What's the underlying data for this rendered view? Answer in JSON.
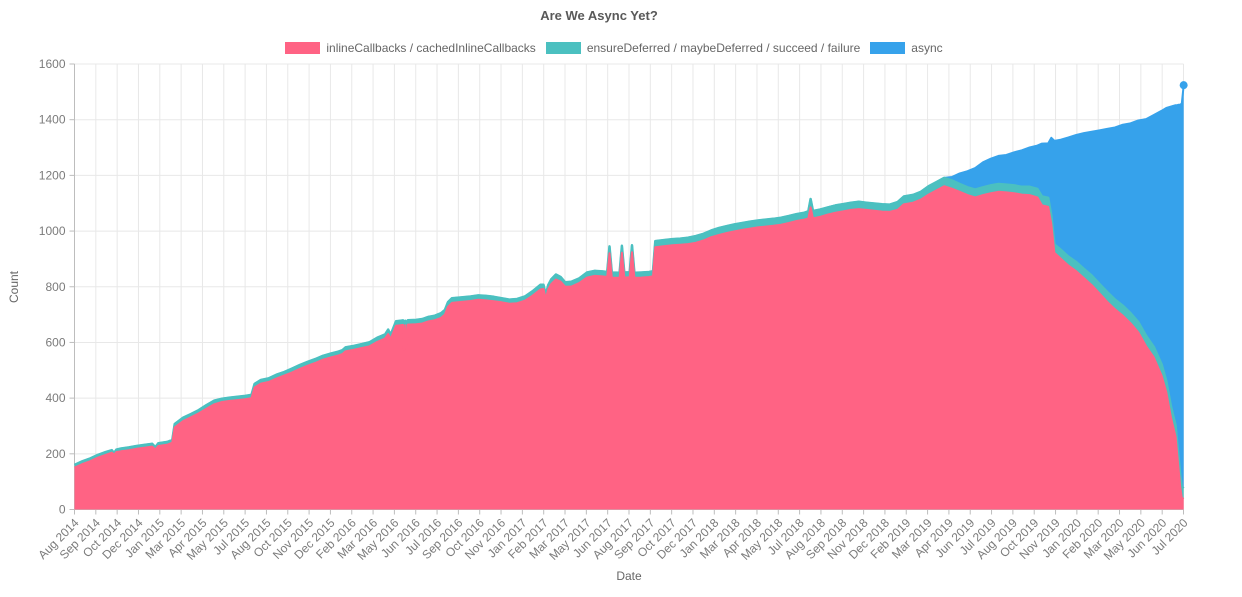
{
  "chart_data": {
    "type": "area",
    "stacked": true,
    "title": "Are We Async Yet?",
    "xlabel": "Date",
    "ylabel": "Count",
    "ylim": [
      0,
      1600
    ],
    "yticks": [
      0,
      200,
      400,
      600,
      800,
      1000,
      1200,
      1400,
      1600
    ],
    "grid": true,
    "legend_position": "top",
    "xtick_labels": [
      "Aug 2014",
      "Sep 2014",
      "Oct 2014",
      "Dec 2014",
      "Jan 2015",
      "Mar 2015",
      "Apr 2015",
      "May 2015",
      "Jul 2015",
      "Aug 2015",
      "Oct 2015",
      "Nov 2015",
      "Dec 2015",
      "Feb 2016",
      "Mar 2016",
      "May 2016",
      "Jun 2016",
      "Jul 2016",
      "Sep 2016",
      "Oct 2016",
      "Nov 2016",
      "Jan 2017",
      "Feb 2017",
      "Mar 2017",
      "May 2017",
      "Jun 2017",
      "Aug 2017",
      "Sep 2017",
      "Oct 2017",
      "Dec 2017",
      "Jan 2018",
      "Mar 2018",
      "Apr 2018",
      "May 2018",
      "Jul 2018",
      "Aug 2018",
      "Sep 2018",
      "Nov 2018",
      "Dec 2018",
      "Feb 2019",
      "Mar 2019",
      "Apr 2019",
      "Jun 2019",
      "Jul 2019",
      "Aug 2019",
      "Oct 2019",
      "Nov 2019",
      "Jan 2020",
      "Feb 2020",
      "Mar 2020",
      "May 2020",
      "Jun 2020",
      "Jul 2020"
    ],
    "series": [
      {
        "name": "inlineCallbacks / cachedInlineCallbacks",
        "color": "#ff6384"
      },
      {
        "name": "ensureDeferred / maybeDeferred / succeed / failure",
        "color": "#4bc0c0"
      },
      {
        "name": "async",
        "color": "#36a2eb"
      }
    ],
    "x_key": "months_since_aug_2014",
    "samples_format": [
      "months_since_aug_2014",
      "inlineCallbacks",
      "ensureDeferred_band",
      "async_band"
    ],
    "samples": [
      [
        0.0,
        150,
        10,
        0
      ],
      [
        0.5,
        163,
        10,
        0
      ],
      [
        1.0,
        173,
        10,
        0
      ],
      [
        1.5,
        186,
        10,
        0
      ],
      [
        2.0,
        196,
        10,
        0
      ],
      [
        2.4,
        204,
        9,
        0
      ],
      [
        2.55,
        197,
        6,
        0
      ],
      [
        2.7,
        206,
        9,
        0
      ],
      [
        3.0,
        209,
        10,
        0
      ],
      [
        3.5,
        213,
        10,
        0
      ],
      [
        4.0,
        218,
        10,
        0
      ],
      [
        4.5,
        222,
        10,
        0
      ],
      [
        5.0,
        226,
        10,
        0
      ],
      [
        5.2,
        216,
        8,
        0
      ],
      [
        5.4,
        228,
        10,
        0
      ],
      [
        6.0,
        233,
        10,
        0
      ],
      [
        6.3,
        240,
        10,
        0
      ],
      [
        6.45,
        295,
        12,
        0
      ],
      [
        7.0,
        318,
        12,
        0
      ],
      [
        7.5,
        331,
        12,
        0
      ],
      [
        8.0,
        345,
        12,
        0
      ],
      [
        8.5,
        362,
        13,
        0
      ],
      [
        9.0,
        378,
        13,
        0
      ],
      [
        9.5,
        386,
        12,
        0
      ],
      [
        10.0,
        390,
        12,
        0
      ],
      [
        10.5,
        393,
        12,
        0
      ],
      [
        11.0,
        396,
        12,
        0
      ],
      [
        11.4,
        400,
        12,
        0
      ],
      [
        11.6,
        438,
        13,
        0
      ],
      [
        12.0,
        452,
        13,
        0
      ],
      [
        12.5,
        458,
        13,
        0
      ],
      [
        13.0,
        470,
        14,
        0
      ],
      [
        13.5,
        481,
        13,
        0
      ],
      [
        14.0,
        492,
        14,
        0
      ],
      [
        14.5,
        505,
        14,
        0
      ],
      [
        15.0,
        516,
        14,
        0
      ],
      [
        15.5,
        526,
        14,
        0
      ],
      [
        16.0,
        538,
        14,
        0
      ],
      [
        16.5,
        546,
        14,
        0
      ],
      [
        17.0,
        553,
        14,
        0
      ],
      [
        17.25,
        558,
        14,
        0
      ],
      [
        17.45,
        568,
        14,
        0
      ],
      [
        18.0,
        574,
        14,
        0
      ],
      [
        18.5,
        580,
        14,
        0
      ],
      [
        19.0,
        586,
        15,
        0
      ],
      [
        19.5,
        602,
        15,
        0
      ],
      [
        20.0,
        614,
        15,
        0
      ],
      [
        20.2,
        630,
        16,
        0
      ],
      [
        20.35,
        612,
        15,
        0
      ],
      [
        20.5,
        632,
        16,
        0
      ],
      [
        20.7,
        660,
        16,
        0
      ],
      [
        21.0,
        662,
        16,
        0
      ],
      [
        21.15,
        663,
        16,
        0
      ],
      [
        21.22,
        574,
        16,
        0
      ],
      [
        21.3,
        662,
        16,
        0
      ],
      [
        21.38,
        576,
        16,
        0
      ],
      [
        21.46,
        664,
        16,
        0
      ],
      [
        22.0,
        665,
        16,
        0
      ],
      [
        22.4,
        668,
        16,
        0
      ],
      [
        22.8,
        676,
        16,
        0
      ],
      [
        23.2,
        680,
        16,
        0
      ],
      [
        23.6,
        688,
        17,
        0
      ],
      [
        23.85,
        700,
        17,
        0
      ],
      [
        24.05,
        728,
        17,
        0
      ],
      [
        24.3,
        742,
        17,
        0
      ],
      [
        25.0,
        746,
        16,
        0
      ],
      [
        25.5,
        749,
        16,
        0
      ],
      [
        26.0,
        753,
        16,
        0
      ],
      [
        26.5,
        751,
        16,
        0
      ],
      [
        27.0,
        748,
        16,
        0
      ],
      [
        27.5,
        744,
        15,
        0
      ],
      [
        28.0,
        739,
        15,
        0
      ],
      [
        28.5,
        741,
        15,
        0
      ],
      [
        29.0,
        750,
        15,
        0
      ],
      [
        29.5,
        768,
        16,
        0
      ],
      [
        30.0,
        790,
        17,
        0
      ],
      [
        30.2,
        792,
        15,
        0
      ],
      [
        30.35,
        756,
        14,
        0
      ],
      [
        30.5,
        790,
        16,
        0
      ],
      [
        30.7,
        810,
        17,
        0
      ],
      [
        31.0,
        826,
        18,
        0
      ],
      [
        31.3,
        818,
        17,
        0
      ],
      [
        31.6,
        800,
        16,
        0
      ],
      [
        32.0,
        801,
        17,
        0
      ],
      [
        32.5,
        813,
        17,
        0
      ],
      [
        33.0,
        833,
        18,
        0
      ],
      [
        33.5,
        839,
        18,
        0
      ],
      [
        34.0,
        837,
        18,
        0
      ],
      [
        34.3,
        835,
        18,
        0
      ],
      [
        34.45,
        920,
        25,
        0
      ],
      [
        34.6,
        833,
        18,
        0
      ],
      [
        35.1,
        832,
        18,
        0
      ],
      [
        35.25,
        922,
        25,
        0
      ],
      [
        35.4,
        833,
        18,
        0
      ],
      [
        35.75,
        834,
        18,
        0
      ],
      [
        35.9,
        924,
        25,
        0
      ],
      [
        36.05,
        832,
        18,
        0
      ],
      [
        36.5,
        833,
        18,
        0
      ],
      [
        37.0,
        835,
        18,
        0
      ],
      [
        37.25,
        838,
        18,
        0
      ],
      [
        37.4,
        942,
        22,
        0
      ],
      [
        38.0,
        946,
        22,
        0
      ],
      [
        38.5,
        949,
        22,
        0
      ],
      [
        39.0,
        951,
        22,
        0
      ],
      [
        39.5,
        953,
        23,
        0
      ],
      [
        40.0,
        958,
        24,
        0
      ],
      [
        40.5,
        966,
        24,
        0
      ],
      [
        41.0,
        978,
        24,
        0
      ],
      [
        41.5,
        986,
        25,
        0
      ],
      [
        42.0,
        993,
        25,
        0
      ],
      [
        42.5,
        999,
        25,
        0
      ],
      [
        43.0,
        1004,
        25,
        0
      ],
      [
        43.5,
        1009,
        25,
        0
      ],
      [
        44.0,
        1013,
        25,
        0
      ],
      [
        44.5,
        1016,
        25,
        0
      ],
      [
        45.0,
        1019,
        25,
        0
      ],
      [
        45.5,
        1023,
        25,
        0
      ],
      [
        46.0,
        1029,
        25,
        0
      ],
      [
        46.5,
        1036,
        25,
        0
      ],
      [
        47.0,
        1041,
        25,
        0
      ],
      [
        47.25,
        1045,
        26,
        0
      ],
      [
        47.4,
        1085,
        30,
        0
      ],
      [
        47.55,
        1046,
        26,
        0
      ],
      [
        48.0,
        1051,
        26,
        0
      ],
      [
        48.5,
        1059,
        26,
        0
      ],
      [
        49.0,
        1066,
        26,
        0
      ],
      [
        49.5,
        1071,
        26,
        0
      ],
      [
        50.0,
        1076,
        26,
        0
      ],
      [
        50.5,
        1079,
        26,
        0
      ],
      [
        51.0,
        1076,
        26,
        0
      ],
      [
        51.5,
        1073,
        26,
        0
      ],
      [
        52.0,
        1070,
        26,
        0
      ],
      [
        52.5,
        1069,
        26,
        0
      ],
      [
        53.0,
        1076,
        28,
        0
      ],
      [
        53.4,
        1096,
        28,
        0
      ],
      [
        54.0,
        1102,
        28,
        0
      ],
      [
        54.5,
        1113,
        28,
        0
      ],
      [
        55.0,
        1131,
        30,
        0
      ],
      [
        55.5,
        1146,
        30,
        0
      ],
      [
        56.0,
        1161,
        30,
        0
      ],
      [
        56.5,
        1152,
        30,
        12
      ],
      [
        57.0,
        1141,
        28,
        38
      ],
      [
        57.5,
        1129,
        28,
        58
      ],
      [
        58.0,
        1121,
        28,
        77
      ],
      [
        58.5,
        1129,
        28,
        90
      ],
      [
        59.0,
        1136,
        28,
        96
      ],
      [
        59.5,
        1141,
        28,
        101
      ],
      [
        60.0,
        1139,
        28,
        106
      ],
      [
        60.5,
        1136,
        28,
        119
      ],
      [
        61.0,
        1131,
        28,
        131
      ],
      [
        61.5,
        1129,
        30,
        141
      ],
      [
        62.0,
        1121,
        30,
        156
      ],
      [
        62.3,
        1092,
        32,
        190
      ],
      [
        62.7,
        1087,
        32,
        196
      ],
      [
        62.9,
        1025,
        30,
        280
      ],
      [
        63.1,
        922,
        30,
        372
      ],
      [
        63.5,
        901,
        32,
        395
      ],
      [
        64.0,
        876,
        32,
        428
      ],
      [
        64.5,
        856,
        33,
        456
      ],
      [
        65.0,
        831,
        33,
        488
      ],
      [
        65.5,
        806,
        34,
        517
      ],
      [
        66.0,
        776,
        34,
        552
      ],
      [
        66.5,
        746,
        35,
        586
      ],
      [
        67.0,
        719,
        35,
        618
      ],
      [
        67.5,
        696,
        36,
        650
      ],
      [
        68.0,
        669,
        36,
        682
      ],
      [
        68.5,
        636,
        37,
        724
      ],
      [
        69.0,
        586,
        38,
        778
      ],
      [
        69.5,
        546,
        38,
        833
      ],
      [
        70.0,
        481,
        40,
        911
      ],
      [
        70.3,
        421,
        40,
        981
      ],
      [
        70.6,
        331,
        40,
        1076
      ],
      [
        70.9,
        261,
        40,
        1151
      ],
      [
        71.0,
        201,
        40,
        1211
      ],
      [
        71.1,
        141,
        42,
        1271
      ],
      [
        71.2,
        81,
        42,
        1331
      ],
      [
        71.3,
        42,
        40,
        1376
      ],
      [
        71.42,
        38,
        38,
        1448
      ]
    ],
    "end_marker": {
      "series": "async",
      "months_since_aug_2014": 71.42,
      "total": 1524
    },
    "colors": {
      "grid": "#e8e8e8",
      "axis": "#bdbdbd",
      "tick_text": "#7b7b7b",
      "title_text": "#595959",
      "label_text": "#666666"
    }
  }
}
